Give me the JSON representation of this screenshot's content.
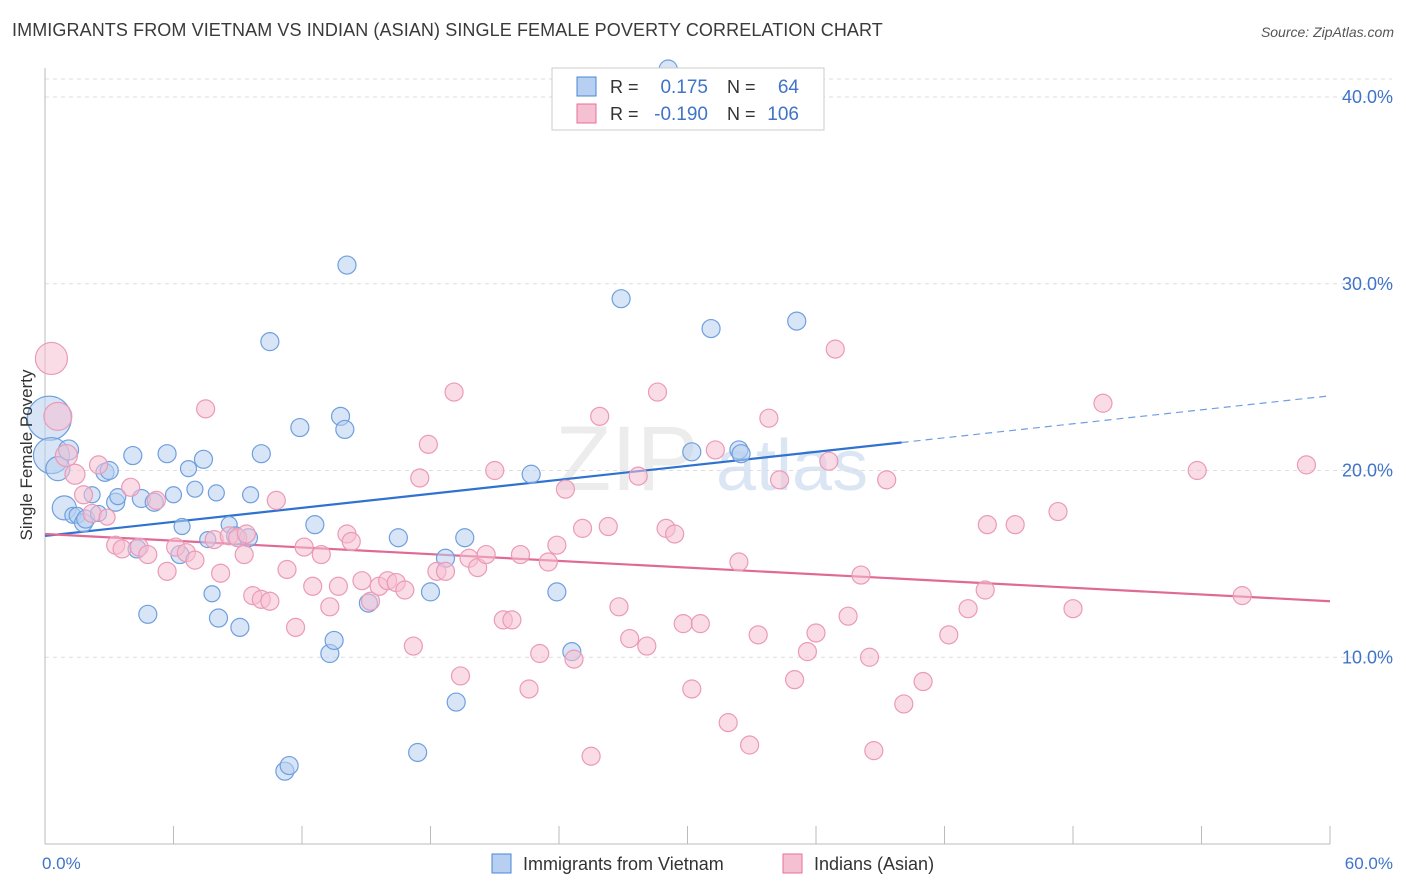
{
  "header": {
    "title": "IMMIGRANTS FROM VIETNAM VS INDIAN (ASIAN) SINGLE FEMALE POVERTY CORRELATION CHART",
    "source": "Source: ZipAtlas.com"
  },
  "watermark": {
    "zip": "ZIP",
    "atlas": "atlas"
  },
  "legend_top": {
    "rows": [
      {
        "r_label": "R =",
        "r_value": "0.175",
        "n_label": "N =",
        "n_value": "64"
      },
      {
        "r_label": "R =",
        "r_value": "-0.190",
        "n_label": "N =",
        "n_value": "106"
      }
    ]
  },
  "legend_bottom": {
    "items": [
      "Immigrants from Vietnam",
      "Indians (Asian)"
    ]
  },
  "colors": {
    "blue": "#4a86d4",
    "blue_fill": "#b7cff0",
    "pink": "#e8709a",
    "pink_fill": "#f5c0d2",
    "axis_text": "#3f74c9"
  },
  "chart_data": {
    "type": "scatter",
    "title": "IMMIGRANTS FROM VIETNAM VS INDIAN (ASIAN) SINGLE FEMALE POVERTY CORRELATION CHART",
    "xlabel": "",
    "ylabel": "Single Female Poverty",
    "xlim": [
      0,
      60
    ],
    "ylim": [
      0,
      40
    ],
    "x_tick_labels": [
      "0.0%",
      "60.0%"
    ],
    "y_ticks": [
      10,
      20,
      30,
      40
    ],
    "y_tick_labels": [
      "10.0%",
      "20.0%",
      "30.0%",
      "40.0%"
    ],
    "grid": "horizontal dashed",
    "series": [
      {
        "name": "Immigrants from Vietnam",
        "color": "#4a86d4",
        "R": 0.175,
        "N": 64,
        "trend": {
          "x0": 0,
          "y0": 16.5,
          "x1": 40,
          "y1": 21.5,
          "dashed_to": 60,
          "dashed_y": 24.0
        },
        "points": [
          [
            0.2,
            22.8,
            22
          ],
          [
            0.3,
            20.8,
            18
          ],
          [
            0.6,
            20.1,
            12
          ],
          [
            0.9,
            18.0,
            12
          ],
          [
            1.1,
            21.1,
            10
          ],
          [
            1.3,
            17.6,
            8
          ],
          [
            1.5,
            17.6,
            8
          ],
          [
            1.8,
            17.2,
            9
          ],
          [
            1.9,
            17.4,
            9
          ],
          [
            2.2,
            18.7,
            8
          ],
          [
            2.5,
            17.7,
            8
          ],
          [
            2.8,
            19.9,
            9
          ],
          [
            3.0,
            20.0,
            9
          ],
          [
            3.3,
            18.3,
            9
          ],
          [
            3.4,
            18.6,
            8
          ],
          [
            4.1,
            20.8,
            9
          ],
          [
            4.3,
            15.8,
            9
          ],
          [
            4.5,
            18.5,
            9
          ],
          [
            4.8,
            12.3,
            9
          ],
          [
            5.1,
            18.3,
            9
          ],
          [
            5.7,
            20.9,
            9
          ],
          [
            6.0,
            18.7,
            8
          ],
          [
            6.4,
            17.0,
            8
          ],
          [
            6.3,
            15.5,
            9
          ],
          [
            6.7,
            20.1,
            8
          ],
          [
            7.0,
            19.0,
            8
          ],
          [
            7.4,
            20.6,
            9
          ],
          [
            7.6,
            16.3,
            8
          ],
          [
            7.8,
            13.4,
            8
          ],
          [
            8.0,
            18.8,
            8
          ],
          [
            8.1,
            12.1,
            9
          ],
          [
            8.6,
            17.1,
            8
          ],
          [
            8.9,
            16.5,
            9
          ],
          [
            9.1,
            11.6,
            9
          ],
          [
            9.5,
            16.4,
            9
          ],
          [
            9.6,
            18.7,
            8
          ],
          [
            10.1,
            20.9,
            9
          ],
          [
            10.5,
            26.9,
            9
          ],
          [
            11.2,
            3.9,
            9
          ],
          [
            11.4,
            4.2,
            9
          ],
          [
            11.9,
            22.3,
            9
          ],
          [
            12.6,
            17.1,
            9
          ],
          [
            13.3,
            10.2,
            9
          ],
          [
            13.5,
            10.9,
            9
          ],
          [
            13.8,
            22.9,
            9
          ],
          [
            14.0,
            22.2,
            9
          ],
          [
            14.1,
            31.0,
            9
          ],
          [
            15.1,
            12.9,
            9
          ],
          [
            16.5,
            16.4,
            9
          ],
          [
            17.4,
            4.9,
            9
          ],
          [
            18.0,
            13.5,
            9
          ],
          [
            18.7,
            15.3,
            9
          ],
          [
            19.2,
            7.6,
            9
          ],
          [
            19.6,
            16.4,
            9
          ],
          [
            22.7,
            19.8,
            9
          ],
          [
            23.9,
            13.5,
            9
          ],
          [
            24.6,
            10.3,
            9
          ],
          [
            26.9,
            29.2,
            9
          ],
          [
            29.1,
            41.5,
            9
          ],
          [
            30.2,
            21.0,
            9
          ],
          [
            31.1,
            27.6,
            9
          ],
          [
            32.4,
            21.1,
            9
          ],
          [
            32.5,
            20.9,
            9
          ],
          [
            35.1,
            28.0,
            9
          ]
        ]
      },
      {
        "name": "Indians (Asian)",
        "color": "#e8709a",
        "R": -0.19,
        "N": 106,
        "trend": {
          "x0": 0,
          "y0": 16.6,
          "x1": 60,
          "y1": 13.0
        },
        "points": [
          [
            0.3,
            26.0,
            16
          ],
          [
            0.6,
            22.9,
            14
          ],
          [
            1.0,
            20.8,
            11
          ],
          [
            1.4,
            19.8,
            10
          ],
          [
            1.8,
            18.7,
            9
          ],
          [
            2.2,
            17.7,
            9
          ],
          [
            2.5,
            20.3,
            9
          ],
          [
            2.9,
            17.5,
            8
          ],
          [
            3.3,
            16.0,
            9
          ],
          [
            3.6,
            15.8,
            9
          ],
          [
            4.0,
            19.1,
            9
          ],
          [
            4.4,
            15.9,
            9
          ],
          [
            4.8,
            15.5,
            9
          ],
          [
            5.2,
            18.4,
            9
          ],
          [
            5.7,
            14.6,
            9
          ],
          [
            6.1,
            15.9,
            9
          ],
          [
            6.6,
            15.6,
            9
          ],
          [
            7.0,
            15.2,
            9
          ],
          [
            7.5,
            23.3,
            9
          ],
          [
            7.9,
            16.3,
            9
          ],
          [
            8.2,
            14.5,
            9
          ],
          [
            8.6,
            16.5,
            9
          ],
          [
            9.0,
            16.4,
            9
          ],
          [
            9.4,
            16.6,
            9
          ],
          [
            9.3,
            15.5,
            9
          ],
          [
            9.7,
            13.3,
            9
          ],
          [
            10.1,
            13.1,
            9
          ],
          [
            10.5,
            13.0,
            9
          ],
          [
            10.8,
            18.4,
            9
          ],
          [
            11.3,
            14.7,
            9
          ],
          [
            11.7,
            11.6,
            9
          ],
          [
            12.1,
            15.9,
            9
          ],
          [
            12.5,
            13.8,
            9
          ],
          [
            12.9,
            15.5,
            9
          ],
          [
            13.3,
            12.7,
            9
          ],
          [
            13.7,
            13.8,
            9
          ],
          [
            14.1,
            16.6,
            9
          ],
          [
            14.3,
            16.2,
            9
          ],
          [
            14.8,
            14.1,
            9
          ],
          [
            15.2,
            13.0,
            9
          ],
          [
            15.6,
            13.8,
            9
          ],
          [
            16.0,
            14.1,
            9
          ],
          [
            16.4,
            14.0,
            9
          ],
          [
            16.8,
            13.6,
            9
          ],
          [
            17.2,
            10.6,
            9
          ],
          [
            17.5,
            19.6,
            9
          ],
          [
            17.9,
            21.4,
            9
          ],
          [
            18.3,
            14.6,
            9
          ],
          [
            18.7,
            14.6,
            9
          ],
          [
            19.1,
            24.2,
            9
          ],
          [
            19.4,
            9.0,
            9
          ],
          [
            19.8,
            15.3,
            9
          ],
          [
            20.2,
            14.8,
            9
          ],
          [
            20.6,
            15.5,
            9
          ],
          [
            21.0,
            20.0,
            9
          ],
          [
            21.4,
            12.0,
            9
          ],
          [
            21.8,
            12.0,
            9
          ],
          [
            22.2,
            15.5,
            9
          ],
          [
            22.6,
            8.3,
            9
          ],
          [
            23.1,
            10.2,
            9
          ],
          [
            23.5,
            15.1,
            9
          ],
          [
            23.9,
            16.0,
            9
          ],
          [
            24.3,
            19.0,
            9
          ],
          [
            24.7,
            9.9,
            9
          ],
          [
            25.1,
            16.9,
            9
          ],
          [
            25.5,
            4.7,
            9
          ],
          [
            25.9,
            22.9,
            9
          ],
          [
            26.3,
            17.0,
            9
          ],
          [
            26.8,
            12.7,
            9
          ],
          [
            27.3,
            11.0,
            9
          ],
          [
            27.7,
            19.7,
            9
          ],
          [
            28.1,
            10.6,
            9
          ],
          [
            28.6,
            24.2,
            9
          ],
          [
            29.0,
            16.9,
            9
          ],
          [
            29.4,
            16.6,
            9
          ],
          [
            29.8,
            11.8,
            9
          ],
          [
            30.2,
            8.3,
            9
          ],
          [
            30.6,
            11.8,
            9
          ],
          [
            31.3,
            21.1,
            9
          ],
          [
            31.9,
            6.5,
            9
          ],
          [
            32.4,
            15.1,
            9
          ],
          [
            32.9,
            5.3,
            9
          ],
          [
            33.3,
            11.2,
            9
          ],
          [
            33.8,
            22.8,
            9
          ],
          [
            34.3,
            19.5,
            9
          ],
          [
            35.0,
            8.8,
            9
          ],
          [
            35.6,
            10.3,
            9
          ],
          [
            36.0,
            11.3,
            9
          ],
          [
            36.6,
            20.5,
            9
          ],
          [
            36.9,
            26.5,
            9
          ],
          [
            37.5,
            12.2,
            9
          ],
          [
            38.1,
            14.4,
            9
          ],
          [
            38.5,
            10.0,
            9
          ],
          [
            38.7,
            5.0,
            9
          ],
          [
            39.3,
            19.5,
            9
          ],
          [
            40.1,
            7.5,
            9
          ],
          [
            41.0,
            8.7,
            9
          ],
          [
            42.2,
            11.2,
            9
          ],
          [
            43.1,
            12.6,
            9
          ],
          [
            43.9,
            13.6,
            9
          ],
          [
            44.0,
            17.1,
            9
          ],
          [
            45.3,
            17.1,
            9
          ],
          [
            47.3,
            17.8,
            9
          ],
          [
            48.0,
            12.6,
            9
          ],
          [
            49.4,
            23.6,
            9
          ],
          [
            53.8,
            20.0,
            9
          ],
          [
            55.9,
            13.3,
            9
          ],
          [
            58.9,
            20.3,
            9
          ]
        ]
      }
    ]
  }
}
